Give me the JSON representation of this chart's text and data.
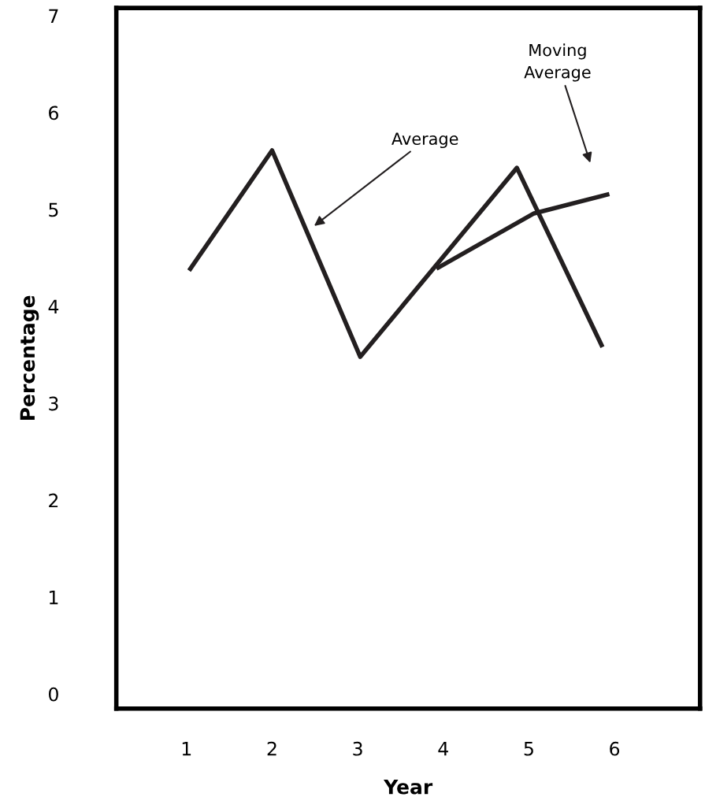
{
  "chart_data": {
    "type": "line",
    "xlabel": "Year",
    "ylabel": "Percentage",
    "series": [
      {
        "x": [
          1.03,
          2.0,
          3.03,
          4.86,
          5.86
        ],
        "values": [
          4.37,
          5.61,
          3.48,
          5.43,
          3.58
        ],
        "color": "#231f20"
      },
      {
        "x": [
          3.92,
          5.06,
          5.94
        ],
        "values": [
          4.39,
          4.96,
          5.16
        ],
        "color": "#231f20"
      }
    ],
    "annotations": [
      "Average",
      "Moving\nAverage"
    ],
    "xlim": [
      0.18,
      7.0
    ],
    "xticks": [
      1,
      2,
      3,
      4,
      5,
      6
    ],
    "ylim": [
      -0.15,
      7.08
    ],
    "yticks": [
      0,
      1,
      2,
      3,
      4,
      5,
      6,
      7
    ],
    "grid": false,
    "legend": false,
    "marker": "none",
    "line_style": "solid"
  }
}
